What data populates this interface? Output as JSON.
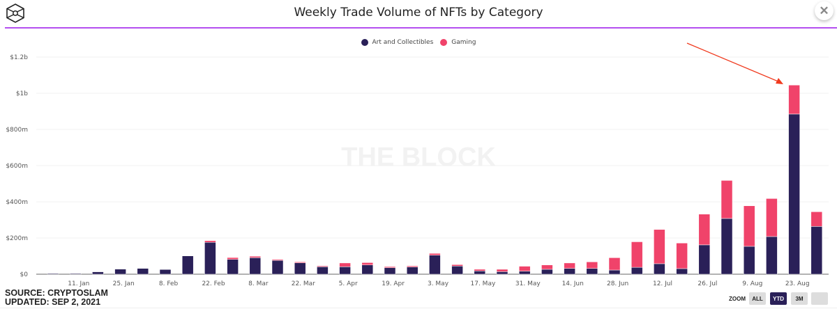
{
  "header": {
    "title": "Weekly Trade Volume of NFTs by Category",
    "close_icon": "close-icon",
    "logo_icon": "cube-logo-icon"
  },
  "watermark": "THE BLOCK",
  "footer": {
    "source": "SOURCE: CRYPTOSLAM",
    "updated": "UPDATED: SEP 2, 2021"
  },
  "zoom": {
    "label": "ZOOM",
    "buttons": [
      "ALL",
      "YTD",
      "3M",
      ""
    ],
    "active": "YTD"
  },
  "colors": {
    "art": "#2a2058",
    "gaming": "#f0436a",
    "accent_line": "#b44ef0",
    "arrow": "#f03a1e"
  },
  "chart_data": {
    "type": "bar",
    "stacked": true,
    "title": "Weekly Trade Volume of NFTs by Category",
    "legend_position": "top",
    "grid": true,
    "ylim": [
      0,
      1200
    ],
    "y_ticks": [
      0,
      200,
      400,
      600,
      800,
      1000,
      1200
    ],
    "y_tick_labels": [
      "$0",
      "$200m",
      "$400m",
      "$600m",
      "$800m",
      "$1b",
      "$1.2b"
    ],
    "x_tick_dates": [
      "2021-01-11",
      "2021-01-25",
      "2021-02-08",
      "2021-02-22",
      "2021-03-08",
      "2021-03-22",
      "2021-04-05",
      "2021-04-19",
      "2021-05-03",
      "2021-05-17",
      "2021-05-31",
      "2021-06-14",
      "2021-06-28",
      "2021-07-12",
      "2021-07-26",
      "2021-08-09",
      "2021-08-23"
    ],
    "x_tick_labels": [
      "11. Jan",
      "25. Jan",
      "8. Feb",
      "22. Feb",
      "8. Mar",
      "22. Mar",
      "5. Apr",
      "19. Apr",
      "3. May",
      "17. May",
      "31. May",
      "14. Jun",
      "28. Jun",
      "12. Jul",
      "26. Jul",
      "9. Aug",
      "23. Aug"
    ],
    "x": [
      "2021-01-03",
      "2021-01-10",
      "2021-01-17",
      "2021-01-24",
      "2021-01-31",
      "2021-02-07",
      "2021-02-14",
      "2021-02-21",
      "2021-02-28",
      "2021-03-07",
      "2021-03-14",
      "2021-03-21",
      "2021-03-28",
      "2021-04-04",
      "2021-04-11",
      "2021-04-18",
      "2021-04-25",
      "2021-05-02",
      "2021-05-09",
      "2021-05-16",
      "2021-05-23",
      "2021-05-30",
      "2021-06-06",
      "2021-06-13",
      "2021-06-20",
      "2021-06-27",
      "2021-07-04",
      "2021-07-11",
      "2021-07-18",
      "2021-07-25",
      "2021-08-01",
      "2021-08-08",
      "2021-08-15",
      "2021-08-22",
      "2021-08-29"
    ],
    "series": [
      {
        "name": "Art and Collectibles",
        "color": "#2a2058",
        "values": [
          4,
          4,
          13,
          28,
          32,
          26,
          101,
          176,
          82,
          91,
          76,
          63,
          41,
          41,
          51,
          36,
          40,
          105,
          45,
          18,
          14,
          17,
          27,
          32,
          32,
          23,
          38,
          58,
          31,
          162,
          308,
          154,
          208,
          885,
          264
        ]
      },
      {
        "name": "Gaming",
        "color": "#f0436a",
        "values": [
          0,
          0,
          0,
          0,
          0,
          0,
          0,
          9,
          10,
          8,
          5,
          5,
          5,
          21,
          13,
          6,
          6,
          10,
          8,
          9,
          13,
          27,
          24,
          30,
          36,
          68,
          141,
          189,
          141,
          170,
          210,
          224,
          210,
          160,
          81
        ]
      }
    ],
    "annotation": "arrow pointing to 22 Aug 2021 peak"
  }
}
